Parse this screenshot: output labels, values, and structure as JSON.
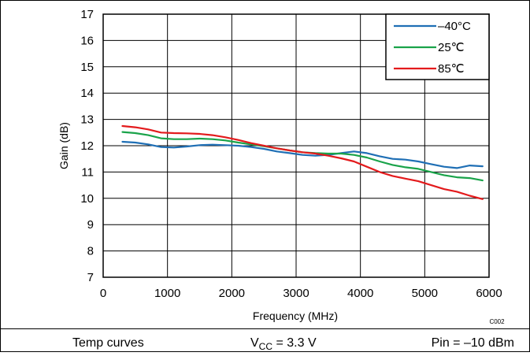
{
  "chart_data": {
    "type": "line",
    "xlabel": "Frequency (MHz)",
    "ylabel": "Gain (dB)",
    "xlim": [
      0,
      6000
    ],
    "ylim": [
      7,
      17
    ],
    "xticks": [
      "0",
      "1000",
      "2000",
      "3000",
      "4000",
      "5000",
      "6000"
    ],
    "yticks": [
      "7",
      "8",
      "9",
      "10",
      "11",
      "12",
      "13",
      "14",
      "15",
      "16",
      "17"
    ],
    "grid": true,
    "legend_position": "top-right",
    "series": [
      {
        "name": "–40°C",
        "color": "#1f6fb5",
        "x": [
          300,
          500,
          700,
          900,
          1100,
          1300,
          1500,
          1700,
          1900,
          2100,
          2300,
          2500,
          2700,
          2900,
          3100,
          3300,
          3500,
          3700,
          3900,
          4100,
          4300,
          4500,
          4700,
          4900,
          5100,
          5300,
          5500,
          5700,
          5900
        ],
        "y": [
          12.15,
          12.12,
          12.05,
          11.95,
          11.93,
          11.97,
          12.02,
          12.04,
          12.02,
          12.0,
          11.95,
          11.88,
          11.78,
          11.72,
          11.65,
          11.62,
          11.65,
          11.72,
          11.78,
          11.72,
          11.6,
          11.5,
          11.47,
          11.4,
          11.3,
          11.2,
          11.15,
          11.25,
          11.22
        ]
      },
      {
        "name": "25℃",
        "color": "#1aa34a",
        "x": [
          300,
          500,
          700,
          900,
          1100,
          1300,
          1500,
          1700,
          1900,
          2100,
          2300,
          2500,
          2700,
          2900,
          3100,
          3300,
          3500,
          3700,
          3900,
          4100,
          4300,
          4500,
          4700,
          4900,
          5100,
          5300,
          5500,
          5700,
          5900
        ],
        "y": [
          12.52,
          12.48,
          12.4,
          12.28,
          12.25,
          12.25,
          12.27,
          12.25,
          12.2,
          12.12,
          12.05,
          11.98,
          11.9,
          11.82,
          11.75,
          11.72,
          11.7,
          11.7,
          11.65,
          11.55,
          11.4,
          11.27,
          11.18,
          11.12,
          11.0,
          10.88,
          10.8,
          10.77,
          10.68
        ]
      },
      {
        "name": "85℃",
        "color": "#e31a1c",
        "x": [
          300,
          500,
          700,
          900,
          1100,
          1300,
          1500,
          1700,
          1900,
          2100,
          2300,
          2500,
          2700,
          2900,
          3100,
          3300,
          3500,
          3700,
          3900,
          4100,
          4300,
          4500,
          4700,
          4900,
          5100,
          5300,
          5500,
          5700,
          5900
        ],
        "y": [
          12.75,
          12.7,
          12.62,
          12.5,
          12.48,
          12.47,
          12.45,
          12.4,
          12.32,
          12.22,
          12.1,
          12.0,
          11.9,
          11.82,
          11.75,
          11.7,
          11.62,
          11.52,
          11.4,
          11.2,
          11.0,
          10.85,
          10.75,
          10.65,
          10.5,
          10.35,
          10.25,
          10.1,
          9.97
        ]
      }
    ]
  },
  "chart_code": "C002",
  "footer": {
    "left": "Temp curves",
    "mid_main": "V",
    "mid_sub": "CC",
    "mid_rest": " = 3.3 V",
    "right": "Pin = –10 dBm"
  }
}
